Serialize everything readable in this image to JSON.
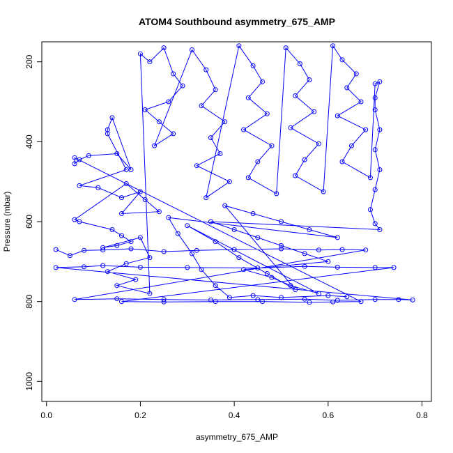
{
  "chart_data": {
    "type": "scatter",
    "title": "ATOM4 Southbound asymmetry_675_AMP",
    "xlabel": "asymmetry_675_AMP",
    "ylabel": "Pressure (mbar)",
    "xlim": [
      -0.01,
      0.82
    ],
    "ylim": [
      1050,
      150
    ],
    "y_reversed": true,
    "x_ticks": [
      {
        "value": 0.0,
        "label": "0.0"
      },
      {
        "value": 0.2,
        "label": "0.2"
      },
      {
        "value": 0.4,
        "label": "0.4"
      },
      {
        "value": 0.6,
        "label": "0.6"
      },
      {
        "value": 0.8,
        "label": "0.8"
      }
    ],
    "y_ticks": [
      {
        "value": 200,
        "label": "200"
      },
      {
        "value": 400,
        "label": "400"
      },
      {
        "value": 600,
        "label": "600"
      },
      {
        "value": 800,
        "label": "800"
      },
      {
        "value": 1000,
        "label": "1000"
      }
    ],
    "grid": false,
    "legend": "none",
    "marker": "open-circle",
    "connected_lines": true,
    "color": "#0000ff",
    "series": [
      {
        "points": [
          [
            0.02,
            670
          ],
          [
            0.05,
            685
          ],
          [
            0.08,
            672
          ],
          [
            0.12,
            671
          ],
          [
            0.18,
            668
          ],
          [
            0.25,
            675
          ],
          [
            0.32,
            672
          ],
          [
            0.4,
            670
          ],
          [
            0.5,
            668
          ],
          [
            0.58,
            671
          ],
          [
            0.63,
            670
          ],
          [
            0.68,
            671
          ],
          [
            0.06,
            795
          ],
          [
            0.15,
            793
          ],
          [
            0.25,
            795
          ],
          [
            0.35,
            796
          ],
          [
            0.45,
            795
          ],
          [
            0.55,
            794
          ],
          [
            0.62,
            797
          ],
          [
            0.7,
            795
          ],
          [
            0.75,
            795
          ],
          [
            0.78,
            796
          ],
          [
            0.02,
            715
          ],
          [
            0.08,
            713
          ],
          [
            0.12,
            710
          ],
          [
            0.2,
            714
          ],
          [
            0.3,
            715
          ],
          [
            0.45,
            716
          ],
          [
            0.55,
            712
          ],
          [
            0.62,
            714
          ],
          [
            0.7,
            715
          ],
          [
            0.74,
            715
          ],
          [
            0.16,
            800
          ],
          [
            0.25,
            801
          ],
          [
            0.36,
            800
          ],
          [
            0.46,
            800
          ],
          [
            0.56,
            802
          ],
          [
            0.61,
            801
          ],
          [
            0.67,
            800
          ],
          [
            0.06,
            440
          ],
          [
            0.06,
            455
          ],
          [
            0.07,
            445
          ],
          [
            0.09,
            435
          ],
          [
            0.15,
            430
          ],
          [
            0.18,
            470
          ],
          [
            0.14,
            340
          ],
          [
            0.13,
            370
          ],
          [
            0.13,
            380
          ],
          [
            0.17,
            470
          ],
          [
            0.07,
            510
          ],
          [
            0.11,
            515
          ],
          [
            0.16,
            540
          ],
          [
            0.2,
            525
          ],
          [
            0.16,
            580
          ],
          [
            0.24,
            575
          ],
          [
            0.21,
            545
          ],
          [
            0.17,
            505
          ],
          [
            0.06,
            595
          ],
          [
            0.07,
            600
          ],
          [
            0.14,
            620
          ],
          [
            0.16,
            635
          ],
          [
            0.18,
            650
          ],
          [
            0.15,
            660
          ],
          [
            0.12,
            665
          ],
          [
            0.2,
            640
          ],
          [
            0.22,
            690
          ],
          [
            0.17,
            705
          ],
          [
            0.13,
            725
          ],
          [
            0.19,
            745
          ],
          [
            0.15,
            760
          ],
          [
            0.22,
            780
          ],
          [
            0.2,
            180
          ],
          [
            0.22,
            200
          ],
          [
            0.25,
            165
          ],
          [
            0.27,
            230
          ],
          [
            0.29,
            260
          ],
          [
            0.26,
            300
          ],
          [
            0.21,
            320
          ],
          [
            0.24,
            350
          ],
          [
            0.27,
            380
          ],
          [
            0.23,
            410
          ],
          [
            0.31,
            170
          ],
          [
            0.34,
            220
          ],
          [
            0.36,
            270
          ],
          [
            0.33,
            310
          ],
          [
            0.38,
            350
          ],
          [
            0.35,
            390
          ],
          [
            0.37,
            430
          ],
          [
            0.32,
            460
          ],
          [
            0.39,
            500
          ],
          [
            0.34,
            540
          ],
          [
            0.41,
            160
          ],
          [
            0.44,
            210
          ],
          [
            0.46,
            250
          ],
          [
            0.43,
            290
          ],
          [
            0.47,
            330
          ],
          [
            0.42,
            370
          ],
          [
            0.48,
            410
          ],
          [
            0.45,
            450
          ],
          [
            0.43,
            490
          ],
          [
            0.49,
            530
          ],
          [
            0.51,
            165
          ],
          [
            0.54,
            205
          ],
          [
            0.56,
            245
          ],
          [
            0.53,
            285
          ],
          [
            0.57,
            325
          ],
          [
            0.52,
            365
          ],
          [
            0.58,
            405
          ],
          [
            0.55,
            445
          ],
          [
            0.53,
            485
          ],
          [
            0.59,
            525
          ],
          [
            0.61,
            160
          ],
          [
            0.63,
            195
          ],
          [
            0.66,
            230
          ],
          [
            0.64,
            265
          ],
          [
            0.67,
            300
          ],
          [
            0.62,
            335
          ],
          [
            0.68,
            370
          ],
          [
            0.65,
            410
          ],
          [
            0.63,
            450
          ],
          [
            0.69,
            490
          ],
          [
            0.7,
            255
          ],
          [
            0.71,
            250
          ],
          [
            0.7,
            290
          ],
          [
            0.7,
            320
          ],
          [
            0.71,
            370
          ],
          [
            0.7,
            420
          ],
          [
            0.71,
            470
          ],
          [
            0.7,
            520
          ],
          [
            0.69,
            570
          ],
          [
            0.7,
            605
          ],
          [
            0.71,
            620
          ],
          [
            0.35,
            600
          ],
          [
            0.4,
            620
          ],
          [
            0.45,
            640
          ],
          [
            0.5,
            660
          ],
          [
            0.55,
            680
          ],
          [
            0.6,
            700
          ],
          [
            0.42,
            720
          ],
          [
            0.48,
            740
          ],
          [
            0.52,
            760
          ],
          [
            0.58,
            780
          ],
          [
            0.3,
            610
          ],
          [
            0.36,
            650
          ],
          [
            0.41,
            690
          ],
          [
            0.47,
            730
          ],
          [
            0.53,
            770
          ],
          [
            0.38,
            560
          ],
          [
            0.44,
            580
          ],
          [
            0.5,
            600
          ],
          [
            0.56,
            620
          ],
          [
            0.62,
            640
          ],
          [
            0.26,
            590
          ],
          [
            0.28,
            630
          ],
          [
            0.31,
            680
          ],
          [
            0.33,
            720
          ],
          [
            0.36,
            760
          ],
          [
            0.39,
            790
          ],
          [
            0.44,
            785
          ],
          [
            0.5,
            790
          ],
          [
            0.6,
            785
          ],
          [
            0.64,
            788
          ]
        ]
      }
    ]
  }
}
